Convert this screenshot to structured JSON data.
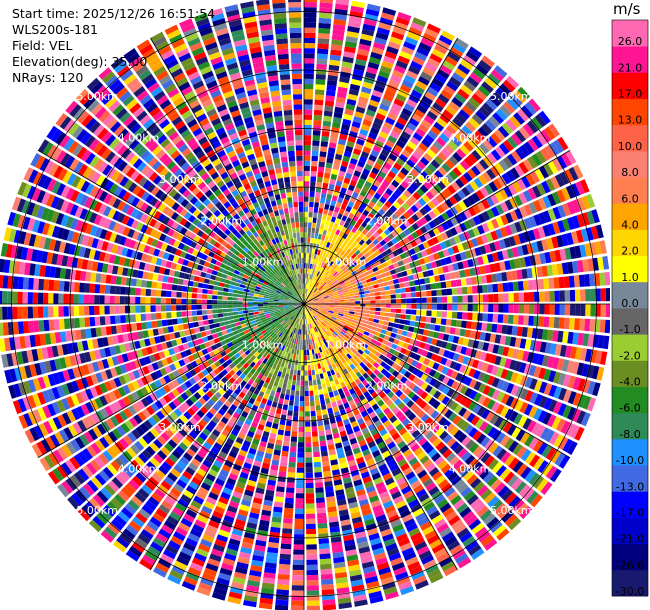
{
  "info": {
    "start_time": "Start time: 2025/12/26 16:51:54",
    "device": "WLS200s-181",
    "field": "Field: VEL",
    "elevation": "Elevation(deg): 35.00",
    "nrays": "NRays: 120"
  },
  "chart_data": {
    "type": "heatmap",
    "projection": "polar-ppi",
    "title": "",
    "field": "VEL",
    "units": "m/s",
    "elevation_deg": 35.0,
    "n_rays": 120,
    "range_rings_km": [
      1.0,
      2.0,
      3.0,
      4.0,
      5.0
    ],
    "range_ring_labels": [
      "1.00km",
      "2.00km",
      "3.00km",
      "4.00km",
      "5.00km"
    ],
    "max_range_km": 5.25,
    "colorbar": {
      "ticks": [
        "26.0",
        "21.0",
        "17.0",
        "13.0",
        "10.0",
        "8.0",
        "6.0",
        "4.0",
        "2.0",
        "1.0",
        "0.0",
        "-1.0",
        "-2.0",
        "-4.0",
        "-6.0",
        "-8.0",
        "-10.0",
        "-13.0",
        "-17.0",
        "-21.0",
        "-26.0",
        "-30.0"
      ],
      "bounds": [
        -30,
        -26,
        -21,
        -17,
        -13,
        -10,
        -8,
        -6,
        -4,
        -2,
        -1,
        0,
        1,
        2,
        4,
        6,
        8,
        10,
        13,
        17,
        21,
        26,
        30
      ],
      "colors": [
        "#191970",
        "#00007f",
        "#0000cd",
        "#0000ff",
        "#4169e1",
        "#1e90ff",
        "#2e8b57",
        "#228b22",
        "#6b8e23",
        "#9acd32",
        "#666666",
        "#778899",
        "#ffff00",
        "#ffd700",
        "#ffa500",
        "#ff7f50",
        "#fa8072",
        "#ff6347",
        "#ff4500",
        "#ff0000",
        "#ff1493",
        "#ff69b4"
      ]
    },
    "pattern": {
      "near_range_km": 1.6,
      "east_sector": "positive velocities 2 to 8 m/s (yellow/orange)",
      "west_sector": "negative velocities -2 to -10 m/s (blue/green)",
      "far_range": "noise across full color scale"
    }
  }
}
